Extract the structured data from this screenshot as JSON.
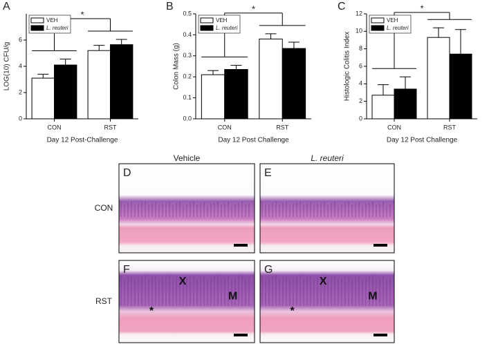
{
  "chart_data": [
    {
      "type": "bar",
      "panel": "A",
      "ylabel": "LOG(10) CFU/g",
      "xlabel": "Day 12 Post-Challenge",
      "significance": "*",
      "categories": [
        "CON",
        "RST"
      ],
      "series": [
        {
          "name": "VEH",
          "color": "#ffffff",
          "values": [
            3.1,
            5.2
          ],
          "errors": [
            0.3,
            0.4
          ]
        },
        {
          "name": "L. reuteri",
          "color": "#000000",
          "values": [
            4.1,
            5.65
          ],
          "errors": [
            0.45,
            0.4
          ]
        }
      ],
      "ylim": [
        0,
        8
      ],
      "yticks": [
        0,
        2,
        4,
        6
      ]
    },
    {
      "type": "bar",
      "panel": "B",
      "ylabel": "Colon Mass (g)",
      "xlabel": "Day 12 Post Challenge",
      "significance": "*",
      "categories": [
        "CON",
        "RST"
      ],
      "series": [
        {
          "name": "VEH",
          "color": "#ffffff",
          "values": [
            0.21,
            0.38
          ],
          "errors": [
            0.02,
            0.025
          ]
        },
        {
          "name": "L. reuteri",
          "color": "#000000",
          "values": [
            0.235,
            0.335
          ],
          "errors": [
            0.02,
            0.03
          ]
        }
      ],
      "ylim": [
        0,
        0.5
      ],
      "yticks": [
        {
          "value": 0,
          "label": "0.0"
        },
        0.1,
        0.2,
        0.3,
        0.4,
        0.5
      ]
    },
    {
      "type": "bar",
      "panel": "C",
      "ylabel": "Histologic Colitis Index",
      "xlabel": "Day 12 Post Challenge",
      "significance": "*",
      "categories": [
        "CON",
        "RST"
      ],
      "series": [
        {
          "name": "VEH",
          "color": "#ffffff",
          "values": [
            2.7,
            9.3
          ],
          "errors": [
            1.2,
            1.1
          ]
        },
        {
          "name": "L. reuteri",
          "color": "#000000",
          "values": [
            3.4,
            7.4
          ],
          "errors": [
            1.4,
            2.8
          ]
        }
      ],
      "ylim": [
        0,
        12
      ],
      "yticks": [
        0,
        2,
        4,
        6,
        8,
        10,
        12
      ]
    }
  ],
  "histology": {
    "columns": [
      "Vehicle",
      "L. reuteri"
    ],
    "rows": [
      "CON",
      "RST"
    ],
    "panels": [
      {
        "label": "D",
        "marks": []
      },
      {
        "label": "E",
        "marks": []
      },
      {
        "label": "F",
        "marks": [
          "X",
          "M",
          "*"
        ]
      },
      {
        "label": "G",
        "marks": [
          "X",
          "M",
          "*"
        ]
      }
    ]
  }
}
